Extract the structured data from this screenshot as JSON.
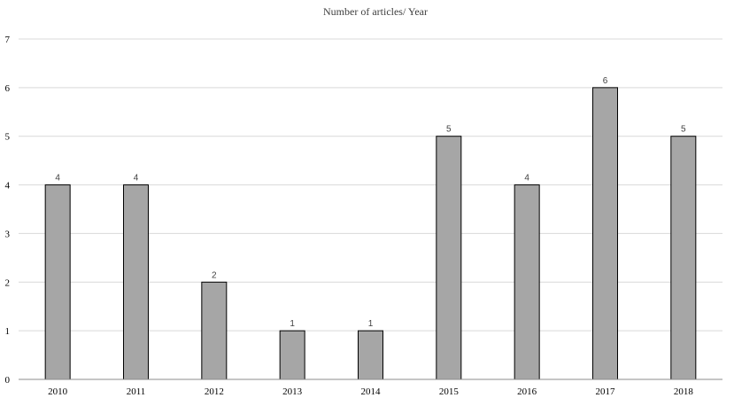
{
  "chart_data": {
    "type": "bar",
    "title": "Number of articles/ Year",
    "categories": [
      "2010",
      "2011",
      "2012",
      "2013",
      "2014",
      "2015",
      "2016",
      "2017",
      "2018"
    ],
    "values": [
      4,
      4,
      2,
      1,
      1,
      5,
      4,
      6,
      5
    ],
    "data_labels": [
      "4",
      "4",
      "2",
      "1",
      "1",
      "5",
      "4",
      "6",
      "5"
    ],
    "ylim": [
      0,
      7
    ],
    "y_ticks": [
      "0",
      "1",
      "2",
      "3",
      "4",
      "5",
      "6",
      "7"
    ],
    "grid": true,
    "legend": "none",
    "colors": {
      "bar_fill": "#a6a6a6",
      "bar_stroke": "#000000",
      "gridline": "#d9d9d9"
    }
  }
}
